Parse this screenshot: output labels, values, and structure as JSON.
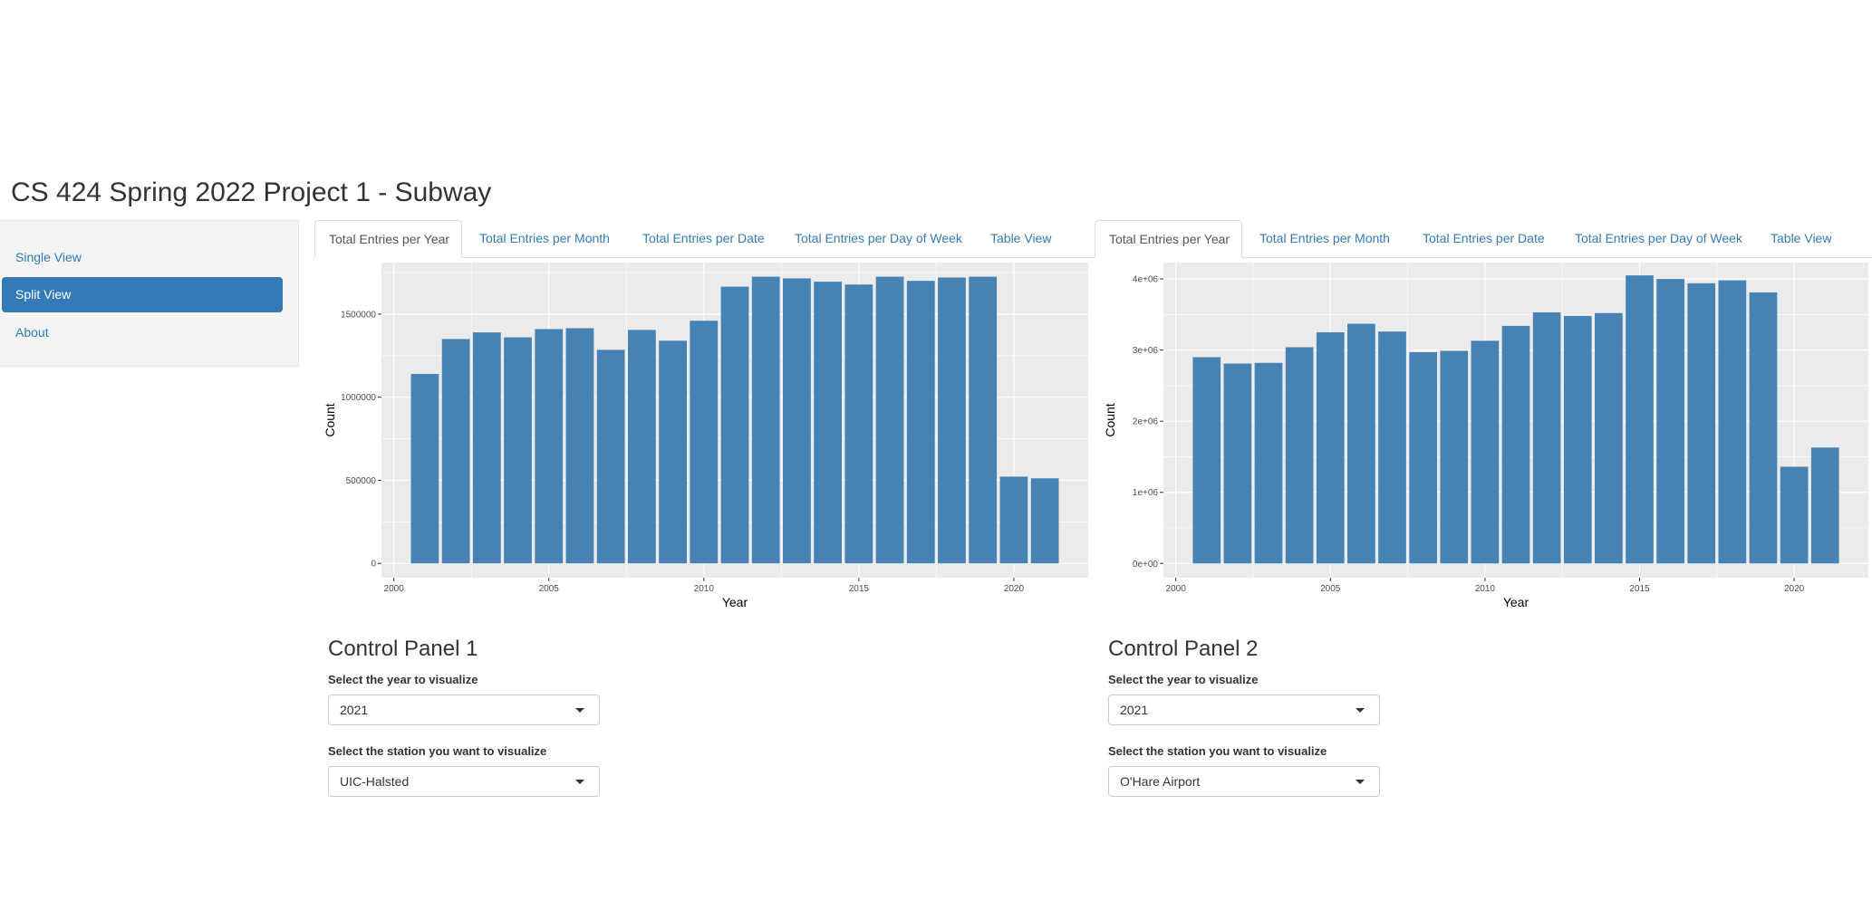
{
  "app": {
    "title": "CS 424 Spring 2022 Project 1 - Subway"
  },
  "sidebar": {
    "items": [
      {
        "label": "Single View",
        "active": false
      },
      {
        "label": "Split View",
        "active": true
      },
      {
        "label": "About",
        "active": false
      }
    ]
  },
  "panels": [
    {
      "tabs": [
        {
          "label": "Total Entries per Year",
          "active": true
        },
        {
          "label": "Total Entries per Month",
          "active": false
        },
        {
          "label": "Total Entries per Date",
          "active": false
        },
        {
          "label": "Total Entries per Day of Week",
          "active": false
        },
        {
          "label": "Table View",
          "active": false
        }
      ],
      "control_panel": {
        "title": "Control Panel 1",
        "year_label": "Select the year to visualize",
        "year_value": "2021",
        "station_label": "Select the station you want to visualize",
        "station_value": "UIC-Halsted"
      }
    },
    {
      "tabs": [
        {
          "label": "Total Entries per Year",
          "active": true
        },
        {
          "label": "Total Entries per Month",
          "active": false
        },
        {
          "label": "Total Entries per Date",
          "active": false
        },
        {
          "label": "Total Entries per Day of Week",
          "active": false
        },
        {
          "label": "Table View",
          "active": false
        }
      ],
      "control_panel": {
        "title": "Control Panel 2",
        "year_label": "Select the year to visualize",
        "year_value": "2021",
        "station_label": "Select the station you want to visualize",
        "station_value": "O'Hare Airport"
      }
    }
  ],
  "colors": {
    "bar": "#4682b4",
    "panel_bg": "#ebebeb",
    "grid": "#ffffff",
    "accent": "#337ab7"
  },
  "chart_data": [
    {
      "type": "bar",
      "title": "",
      "xlabel": "Year",
      "ylabel": "Count",
      "x": [
        2001,
        2002,
        2003,
        2004,
        2005,
        2006,
        2007,
        2008,
        2009,
        2010,
        2011,
        2012,
        2013,
        2014,
        2015,
        2016,
        2017,
        2018,
        2019,
        2020,
        2021
      ],
      "values": [
        1140000,
        1350000,
        1390000,
        1360000,
        1410000,
        1415000,
        1285000,
        1405000,
        1340000,
        1460000,
        1665000,
        1725000,
        1715000,
        1695000,
        1678000,
        1725000,
        1700000,
        1720000,
        1725000,
        522000,
        512000
      ],
      "xlim": [
        1999.6,
        2022.4
      ],
      "ylim": [
        -86000,
        1810000
      ],
      "xticks": [
        2000,
        2005,
        2010,
        2015,
        2020
      ],
      "xtick_labels": [
        "2000",
        "2005",
        "2010",
        "2015",
        "2020"
      ],
      "yticks": [
        0,
        500000,
        1000000,
        1500000
      ],
      "ytick_labels": [
        "0",
        "500000",
        "1000000",
        "1500000"
      ],
      "grid": true
    },
    {
      "type": "bar",
      "title": "",
      "xlabel": "Year",
      "ylabel": "Count",
      "x": [
        2001,
        2002,
        2003,
        2004,
        2005,
        2006,
        2007,
        2008,
        2009,
        2010,
        2011,
        2012,
        2013,
        2014,
        2015,
        2016,
        2017,
        2018,
        2019,
        2020,
        2021
      ],
      "values": [
        2900000,
        2810000,
        2820000,
        3040000,
        3250000,
        3370000,
        3260000,
        2970000,
        2990000,
        3130000,
        3340000,
        3530000,
        3480000,
        3520000,
        4050000,
        4000000,
        3940000,
        3980000,
        3810000,
        1360000,
        1630000
      ],
      "xlim": [
        1999.6,
        2022.4
      ],
      "ylim": [
        -200000,
        4230000
      ],
      "xticks": [
        2000,
        2005,
        2010,
        2015,
        2020
      ],
      "xtick_labels": [
        "2000",
        "2005",
        "2010",
        "2015",
        "2020"
      ],
      "yticks": [
        0,
        1000000,
        2000000,
        3000000,
        4000000
      ],
      "ytick_labels": [
        "0e+00",
        "1e+06",
        "2e+06",
        "3e+06",
        "4e+06"
      ],
      "grid": true
    }
  ]
}
